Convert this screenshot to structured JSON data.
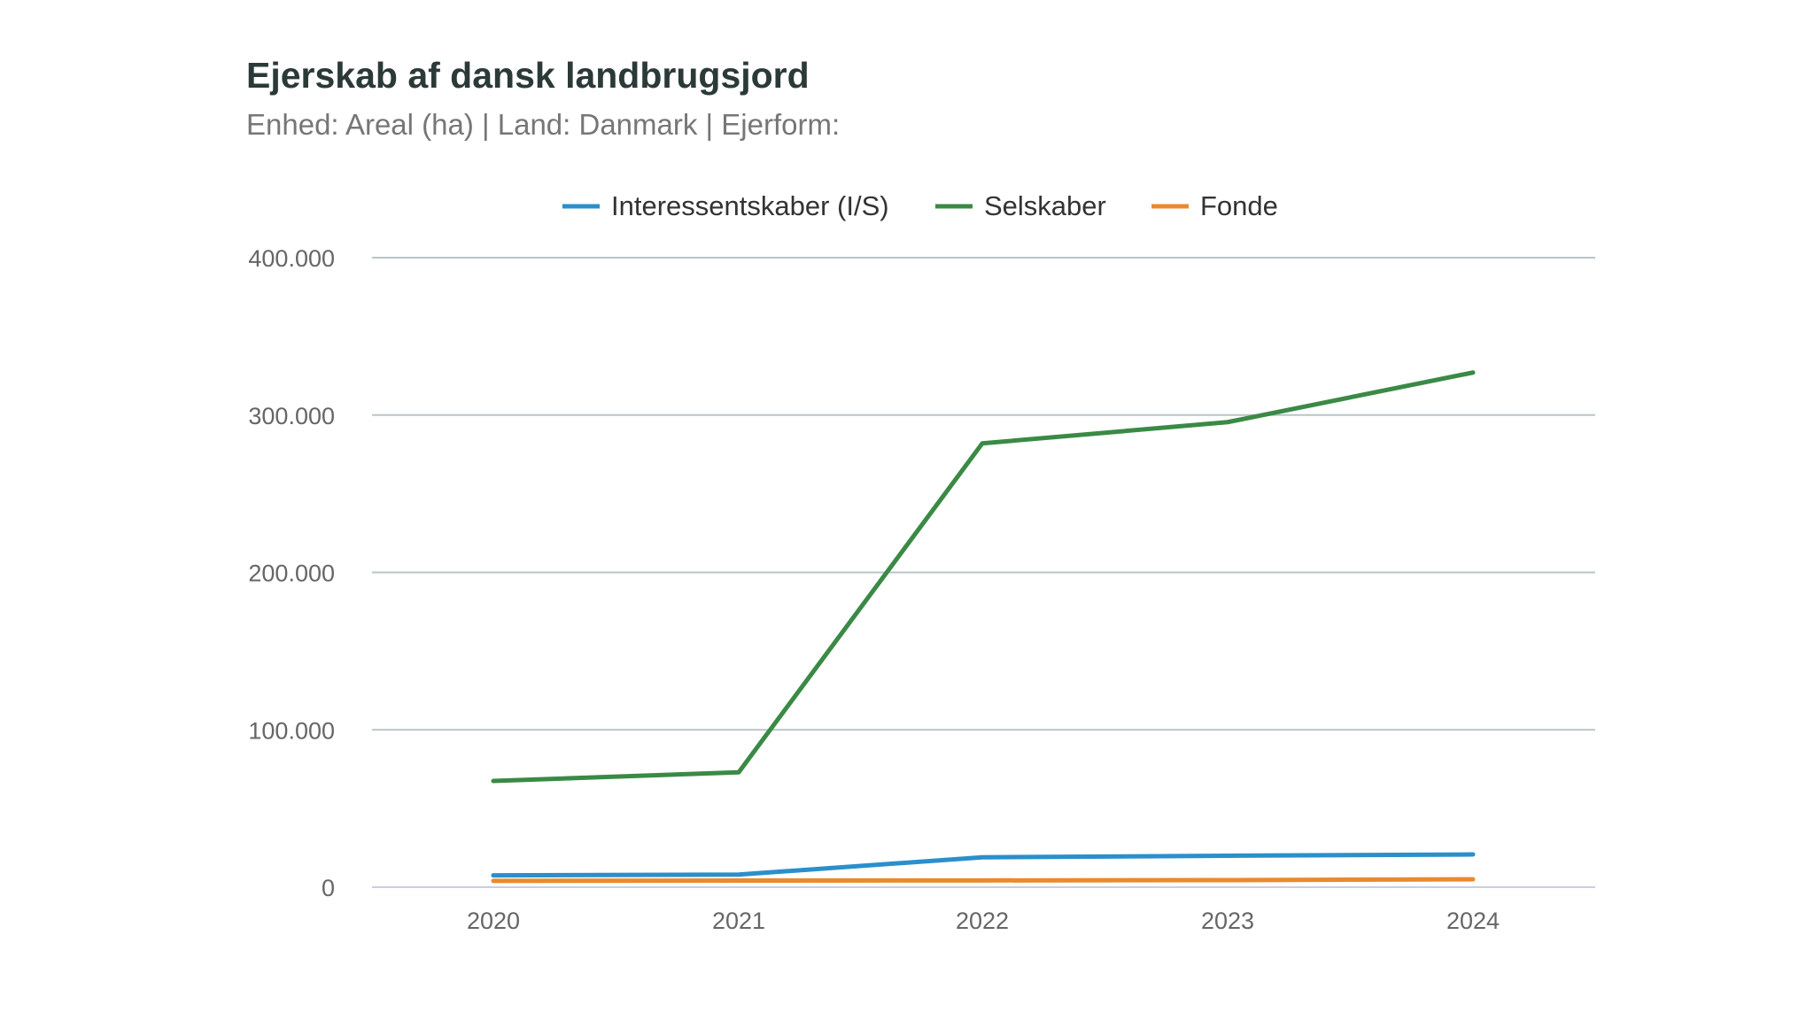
{
  "chart_data": {
    "type": "line",
    "title": "Ejerskab af dansk landbrugsjord",
    "subtitle": "Enhed: Areal (ha) | Land: Danmark | Ejerform:",
    "xlabel": "",
    "ylabel": "",
    "x": [
      "2020",
      "2021",
      "2022",
      "2023",
      "2024"
    ],
    "ylim": [
      0,
      400000
    ],
    "yticks": [
      0,
      100000,
      200000,
      300000,
      400000
    ],
    "ytick_labels": [
      "0",
      "100.000",
      "200.000",
      "300.000",
      "400.000"
    ],
    "grid": true,
    "legend_position": "top-center",
    "series": [
      {
        "name": "Interessentskaber (I/S)",
        "color": "#2b8fcb",
        "values": [
          7500,
          8000,
          19000,
          20000,
          20800
        ]
      },
      {
        "name": "Selskaber",
        "color": "#3a8a45",
        "values": [
          67500,
          73000,
          282000,
          295500,
          327000
        ]
      },
      {
        "name": "Fonde",
        "color": "#e98a2e",
        "values": [
          4000,
          4200,
          4300,
          4500,
          5000
        ]
      }
    ]
  }
}
